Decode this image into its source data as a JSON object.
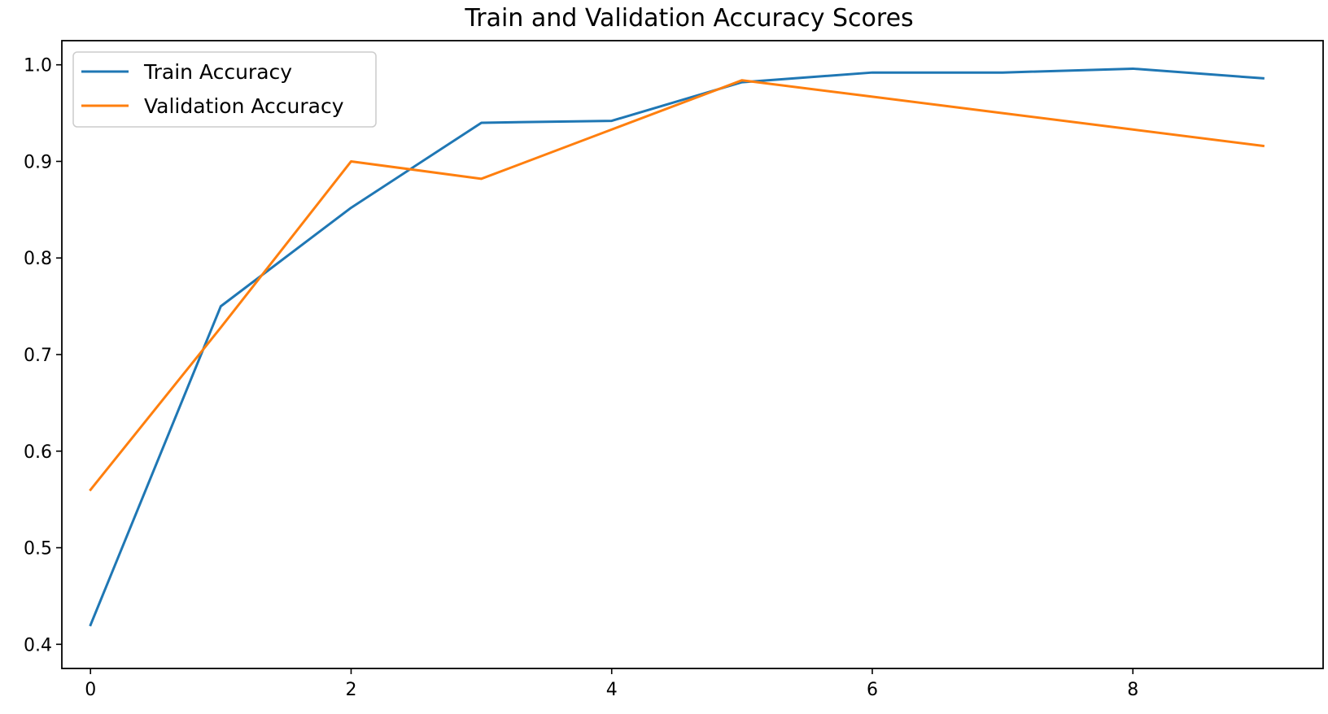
{
  "chart_data": {
    "type": "line",
    "title": "Train and Validation Accuracy Scores",
    "xlabel": "",
    "ylabel": "",
    "x": [
      0,
      1,
      2,
      3,
      4,
      5,
      6,
      7,
      8,
      9
    ],
    "xlim": [
      -0.22,
      9.46
    ],
    "ylim": [
      0.375,
      1.025
    ],
    "xticks": [
      0,
      2,
      4,
      6,
      8
    ],
    "yticks": [
      0.4,
      0.5,
      0.6,
      0.7,
      0.8,
      0.9,
      1.0
    ],
    "xtick_labels": [
      "0",
      "2",
      "4",
      "6",
      "8"
    ],
    "ytick_labels": [
      "0.4",
      "0.5",
      "0.6",
      "0.7",
      "0.8",
      "0.9",
      "1.0"
    ],
    "grid": false,
    "legend_position": "top-left",
    "series": [
      {
        "name": "Train Accuracy",
        "color": "#1f77b4",
        "values": [
          0.42,
          0.75,
          0.852,
          0.94,
          0.942,
          0.982,
          0.992,
          0.992,
          0.996,
          0.986
        ]
      },
      {
        "name": "Validation Accuracy",
        "color": "#ff7f0e",
        "values": [
          0.56,
          0.728,
          0.9,
          0.882,
          0.933,
          0.984,
          0.967,
          0.95,
          0.933,
          0.916
        ]
      }
    ]
  }
}
